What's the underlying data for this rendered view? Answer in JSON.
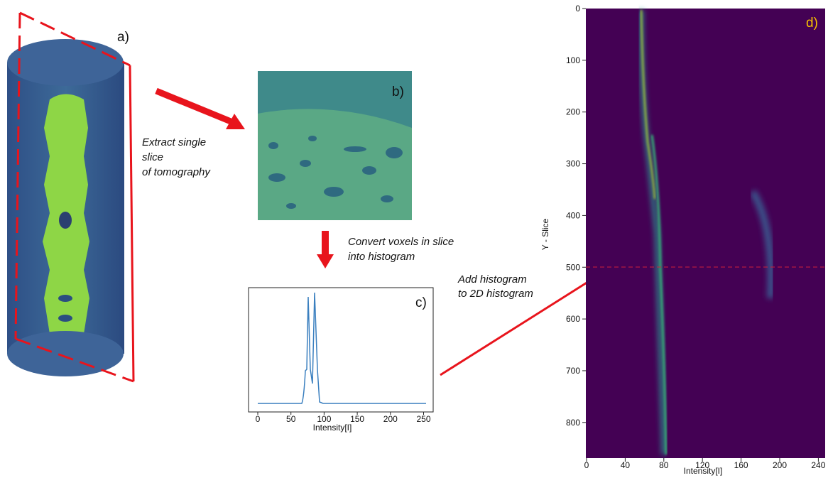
{
  "panels": [
    {
      "label": "a)"
    },
    {
      "label": "b)"
    },
    {
      "label": "c)",
      "xticks": [
        0,
        50,
        100,
        150,
        200,
        250
      ],
      "xlabel": "Intensity[I]"
    },
    {
      "label": "d)",
      "yticks": [
        0,
        100,
        200,
        300,
        400,
        500,
        600,
        700,
        800
      ],
      "xticks": [
        0,
        40,
        80,
        120,
        160,
        200,
        240
      ],
      "xlabel": "Intensity[I]",
      "ylabel": "Y - Slice"
    }
  ],
  "annotations": [
    {
      "lines": [
        "Extract single",
        "slice",
        "of tomography"
      ]
    },
    {
      "lines": [
        "Convert voxels in slice",
        "into histogram"
      ]
    },
    {
      "lines": [
        "Add histogram",
        "to 2D histogram"
      ]
    }
  ]
}
